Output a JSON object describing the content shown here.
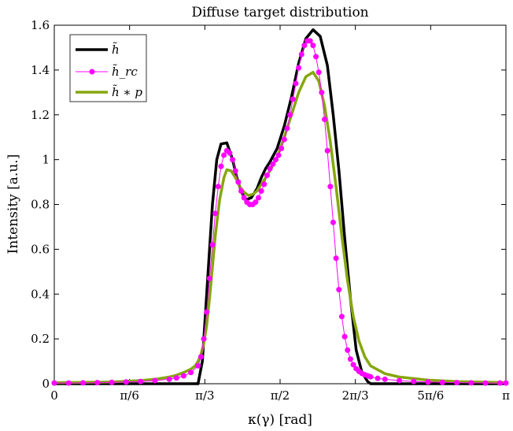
{
  "chart_data": {
    "type": "line",
    "title": "Diffuse target distribution",
    "xlabel": "κ(γ) [rad]",
    "ylabel": "Intensity [a.u.]",
    "xlim": [
      0,
      3.14159
    ],
    "ylim": [
      0,
      1.6
    ],
    "x_ticks": [
      0,
      0.5236,
      1.0472,
      1.5708,
      2.0944,
      2.618,
      3.14159
    ],
    "x_tick_labels": [
      "0",
      "π/6",
      "π/3",
      "π/2",
      "2π/3",
      "5π/6",
      "π"
    ],
    "y_ticks": [
      0,
      0.2,
      0.4,
      0.6,
      0.8,
      1.0,
      1.2,
      1.4,
      1.6
    ],
    "y_tick_labels": [
      "0",
      "0.2",
      "0.4",
      "0.6",
      "0.8",
      "1",
      "1.2",
      "1.4",
      "1.6"
    ],
    "grid": false,
    "legend_position": "top-left",
    "series": [
      {
        "name": "h̃",
        "color": "#000000",
        "marker": "none",
        "x": [
          0,
          0.5,
          0.9,
          1.0,
          1.03,
          1.07,
          1.1,
          1.13,
          1.16,
          1.2,
          1.24,
          1.27,
          1.3,
          1.33,
          1.37,
          1.41,
          1.44,
          1.47,
          1.5,
          1.55,
          1.6,
          1.65,
          1.7,
          1.75,
          1.8,
          1.85,
          1.9,
          1.94,
          1.98,
          2.02,
          2.06,
          2.1,
          2.14,
          2.18,
          2.2,
          2.21,
          2.5,
          3.14159
        ],
        "y": [
          0,
          0,
          0,
          0,
          0.1,
          0.5,
          0.8,
          1.0,
          1.07,
          1.075,
          1.0,
          0.92,
          0.86,
          0.82,
          0.83,
          0.87,
          0.92,
          0.96,
          0.99,
          1.05,
          1.15,
          1.28,
          1.43,
          1.54,
          1.58,
          1.55,
          1.42,
          1.2,
          0.95,
          0.65,
          0.38,
          0.15,
          0.05,
          0.01,
          0,
          0,
          0,
          0
        ]
      },
      {
        "name": "h̃_rc",
        "color": "#ff00ff",
        "marker": "circle",
        "x": [
          0,
          0.1,
          0.2,
          0.3,
          0.4,
          0.5,
          0.6,
          0.7,
          0.8,
          0.85,
          0.9,
          0.95,
          1.0,
          1.02,
          1.04,
          1.06,
          1.08,
          1.1,
          1.12,
          1.14,
          1.16,
          1.18,
          1.2,
          1.22,
          1.24,
          1.26,
          1.28,
          1.3,
          1.32,
          1.34,
          1.36,
          1.38,
          1.4,
          1.42,
          1.44,
          1.46,
          1.48,
          1.5,
          1.52,
          1.54,
          1.56,
          1.58,
          1.6,
          1.62,
          1.64,
          1.66,
          1.68,
          1.7,
          1.72,
          1.74,
          1.76,
          1.78,
          1.8,
          1.82,
          1.84,
          1.86,
          1.88,
          1.9,
          1.92,
          1.94,
          1.96,
          1.98,
          2.0,
          2.02,
          2.04,
          2.06,
          2.08,
          2.1,
          2.12,
          2.14,
          2.16,
          2.18,
          2.2,
          2.25,
          2.3,
          2.4,
          2.5,
          2.6,
          2.7,
          2.8,
          2.9,
          3.0,
          3.1,
          3.14159
        ],
        "y": [
          0.003,
          0.003,
          0.004,
          0.005,
          0.006,
          0.008,
          0.01,
          0.014,
          0.02,
          0.026,
          0.035,
          0.05,
          0.08,
          0.12,
          0.2,
          0.32,
          0.47,
          0.62,
          0.76,
          0.88,
          0.97,
          1.02,
          1.04,
          1.03,
          1.0,
          0.95,
          0.9,
          0.86,
          0.83,
          0.81,
          0.8,
          0.8,
          0.81,
          0.83,
          0.86,
          0.89,
          0.93,
          0.96,
          0.98,
          1.0,
          1.02,
          1.05,
          1.09,
          1.14,
          1.2,
          1.27,
          1.34,
          1.41,
          1.47,
          1.51,
          1.53,
          1.53,
          1.51,
          1.46,
          1.39,
          1.3,
          1.18,
          1.04,
          0.88,
          0.72,
          0.56,
          0.42,
          0.3,
          0.21,
          0.15,
          0.11,
          0.085,
          0.067,
          0.055,
          0.046,
          0.04,
          0.035,
          0.031,
          0.024,
          0.02,
          0.014,
          0.01,
          0.008,
          0.006,
          0.005,
          0.004,
          0.003,
          0.003,
          0.003
        ]
      },
      {
        "name": "h̃ ∗ p",
        "color": "#86a70f",
        "marker": "none",
        "x": [
          0,
          0.2,
          0.4,
          0.6,
          0.7,
          0.8,
          0.85,
          0.9,
          0.95,
          0.98,
          1.0,
          1.02,
          1.04,
          1.06,
          1.08,
          1.1,
          1.12,
          1.15,
          1.18,
          1.2,
          1.23,
          1.26,
          1.29,
          1.32,
          1.35,
          1.38,
          1.41,
          1.44,
          1.47,
          1.5,
          1.55,
          1.6,
          1.65,
          1.7,
          1.75,
          1.8,
          1.84,
          1.88,
          1.92,
          1.96,
          2.0,
          2.04,
          2.08,
          2.12,
          2.16,
          2.2,
          2.3,
          2.4,
          2.6,
          2.8,
          3.0,
          3.14159
        ],
        "y": [
          0.005,
          0.006,
          0.008,
          0.014,
          0.02,
          0.03,
          0.038,
          0.05,
          0.065,
          0.08,
          0.1,
          0.13,
          0.18,
          0.26,
          0.38,
          0.52,
          0.66,
          0.82,
          0.92,
          0.955,
          0.95,
          0.92,
          0.88,
          0.855,
          0.84,
          0.845,
          0.86,
          0.89,
          0.92,
          0.95,
          1.01,
          1.1,
          1.2,
          1.3,
          1.37,
          1.39,
          1.35,
          1.24,
          1.08,
          0.88,
          0.66,
          0.46,
          0.3,
          0.19,
          0.12,
          0.08,
          0.045,
          0.03,
          0.016,
          0.01,
          0.007,
          0.005
        ]
      }
    ]
  }
}
